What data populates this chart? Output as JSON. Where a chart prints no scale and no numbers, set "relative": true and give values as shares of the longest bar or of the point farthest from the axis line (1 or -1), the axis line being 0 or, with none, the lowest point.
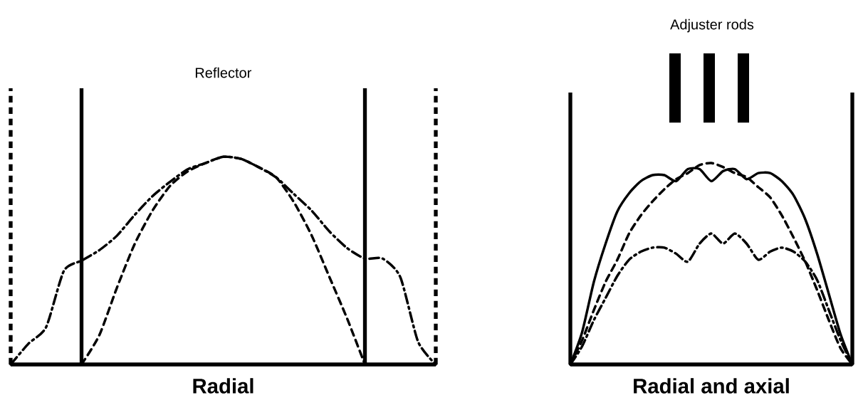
{
  "chart_data": [
    {
      "type": "line",
      "relative": true,
      "xlabel": "Radial",
      "annotations": [
        "Reflector"
      ],
      "categories": [
        null,
        null,
        null,
        null,
        null,
        null,
        null,
        null,
        null,
        null,
        null,
        null,
        null,
        null,
        null,
        null,
        null,
        null,
        null,
        null,
        null,
        null,
        null,
        null,
        null
      ],
      "series": [
        {
          "color": "#000000",
          "line_style": "dashdot",
          "values": [
            0,
            0.1,
            0.18,
            0.45,
            0.5,
            0.55,
            0.62,
            0.72,
            0.81,
            0.88,
            0.94,
            0.97,
            1.0,
            0.99,
            0.95,
            0.9,
            0.82,
            0.74,
            0.64,
            0.56,
            0.51,
            0.51,
            0.42,
            0.11,
            0
          ]
        },
        {
          "color": "#000000",
          "line_style": "dashed",
          "values": [
            null,
            null,
            null,
            null,
            0,
            0.14,
            0.37,
            0.58,
            0.74,
            0.86,
            0.93,
            0.97,
            1.0,
            0.99,
            0.95,
            0.9,
            0.78,
            0.62,
            0.42,
            0.22,
            0,
            null,
            null,
            null,
            null
          ]
        }
      ]
    },
    {
      "type": "line",
      "relative": true,
      "xlabel": "Radial and axial",
      "annotations": [
        "Adjuster rods"
      ],
      "categories": [
        null,
        null,
        null,
        null,
        null,
        null,
        null,
        null,
        null,
        null,
        null,
        null,
        null,
        null,
        null,
        null,
        null,
        null,
        null,
        null,
        null,
        null,
        null,
        null,
        null
      ],
      "series": [
        {
          "color": "#000000",
          "line_style": "solid",
          "values": [
            0,
            0.16,
            0.41,
            0.6,
            0.76,
            0.85,
            0.91,
            0.94,
            0.94,
            0.91,
            0.97,
            0.97,
            0.91,
            0.96,
            0.97,
            0.92,
            0.95,
            0.95,
            0.91,
            0.84,
            0.72,
            0.55,
            0.35,
            0.15,
            0
          ]
        },
        {
          "color": "#000000",
          "line_style": "dashed",
          "values": [
            0,
            0.12,
            0.27,
            0.41,
            0.52,
            0.65,
            0.74,
            0.81,
            0.87,
            0.92,
            0.95,
            0.99,
            1.0,
            0.98,
            0.95,
            0.93,
            0.88,
            0.83,
            0.74,
            0.63,
            0.51,
            0.37,
            0.22,
            0.08,
            0
          ]
        },
        {
          "color": "#000000",
          "line_style": "dashdot",
          "values": [
            0,
            0.09,
            0.22,
            0.33,
            0.44,
            0.52,
            0.56,
            0.58,
            0.58,
            0.55,
            0.51,
            0.6,
            0.65,
            0.6,
            0.65,
            0.6,
            0.52,
            0.56,
            0.58,
            0.56,
            0.51,
            0.42,
            0.27,
            0.12,
            0
          ]
        }
      ]
    }
  ]
}
